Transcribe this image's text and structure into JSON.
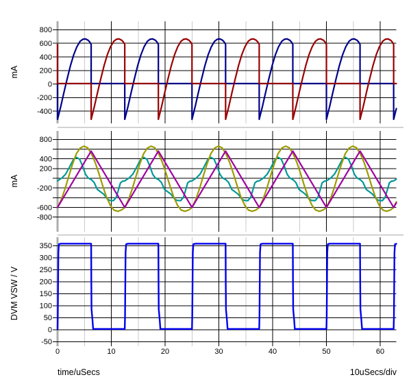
{
  "window": {
    "background": "#ffffff"
  },
  "x_axis": {
    "title": "time/uSecs",
    "scale_label": "10uSecs/div",
    "range": [
      0,
      63
    ],
    "major_ticks": [
      0,
      10,
      20,
      30,
      40,
      50,
      60
    ],
    "minor_ticks": [
      5,
      15,
      25,
      35,
      45,
      55
    ]
  },
  "grid_style": {
    "major_color": "#000000",
    "minor_color": "#c9c9c9",
    "spine_color": "#acacac",
    "separator_color": "#c4c4c4"
  },
  "chart_data": [
    {
      "type": "line",
      "title": "",
      "xlabel": "time/uSecs",
      "ylabel": "mA",
      "xlim": [
        0,
        63
      ],
      "ylim": [
        -580,
        925
      ],
      "y_grid": {
        "max": 800,
        "min": -400,
        "step": 200
      },
      "y_tick_labels": [
        800,
        600,
        400,
        200,
        0,
        -200,
        -400
      ],
      "legend": "none",
      "series": [
        {
          "name": "dark-blue-current",
          "color": "#00008B",
          "width": 2.2,
          "period": 12.5,
          "offset": 0,
          "points": [
            [
              0,
              8
            ],
            [
              0,
              -520
            ],
            [
              0.6,
              -330
            ],
            [
              1.2,
              -120
            ],
            [
              1.8,
              80
            ],
            [
              2.4,
              270
            ],
            [
              3.0,
              430
            ],
            [
              3.6,
              550
            ],
            [
              4.2,
              630
            ],
            [
              4.7,
              660
            ],
            [
              5.2,
              665
            ],
            [
              5.7,
              645
            ],
            [
              6.0,
              618
            ],
            [
              6.2,
              592
            ],
            [
              6.25,
              580
            ],
            [
              6.25,
              8
            ],
            [
              12.5,
              8
            ]
          ]
        },
        {
          "name": "dark-red-current",
          "color": "#990000",
          "width": 2.2,
          "period": 12.5,
          "offset": 6.25,
          "points": [
            [
              0,
              8
            ],
            [
              0,
              -520
            ],
            [
              0.6,
              -330
            ],
            [
              1.2,
              -120
            ],
            [
              1.8,
              80
            ],
            [
              2.4,
              270
            ],
            [
              3.0,
              430
            ],
            [
              3.6,
              550
            ],
            [
              4.2,
              630
            ],
            [
              4.7,
              660
            ],
            [
              5.2,
              665
            ],
            [
              5.7,
              645
            ],
            [
              6.0,
              618
            ],
            [
              6.2,
              592
            ],
            [
              6.25,
              580
            ],
            [
              6.25,
              8
            ],
            [
              12.5,
              8
            ]
          ]
        }
      ]
    },
    {
      "type": "line",
      "title": "",
      "xlabel": "time/uSecs",
      "ylabel": "mA",
      "xlim": [
        0,
        63
      ],
      "ylim": [
        -1100,
        973
      ],
      "y_grid": {
        "max": 800,
        "min": -800,
        "step": 200
      },
      "y_tick_labels": [
        800,
        400,
        200,
        -200,
        -600,
        -800
      ],
      "legend": "none",
      "series": [
        {
          "name": "teal-current",
          "color": "#009898",
          "width": 2.2,
          "period": 12.5,
          "offset": 0,
          "points": [
            [
              0,
              -55
            ],
            [
              0.8,
              5
            ],
            [
              1.5,
              85
            ],
            [
              2.2,
              225
            ],
            [
              2.9,
              375
            ],
            [
              3.5,
              430
            ],
            [
              4.1,
              392
            ],
            [
              4.7,
              240
            ],
            [
              5.2,
              80
            ],
            [
              5.7,
              5
            ],
            [
              6.3,
              -30
            ],
            [
              6.8,
              -85
            ],
            [
              7.4,
              -230
            ],
            [
              8.0,
              -278
            ],
            [
              8.6,
              -330
            ],
            [
              9.2,
              -420
            ],
            [
              9.7,
              -455
            ],
            [
              10.4,
              -460
            ],
            [
              10.9,
              -395
            ],
            [
              11.3,
              -250
            ],
            [
              11.7,
              -95
            ],
            [
              12.1,
              -60
            ],
            [
              12.5,
              -55
            ]
          ]
        },
        {
          "name": "olive-current",
          "color": "#9C9C00",
          "width": 2.2,
          "period": 12.5,
          "offset": 0,
          "points": [
            [
              0,
              -600
            ],
            [
              0.7,
              -440
            ],
            [
              1.4,
              -215
            ],
            [
              2.1,
              45
            ],
            [
              2.8,
              295
            ],
            [
              3.5,
              505
            ],
            [
              4.2,
              620
            ],
            [
              4.9,
              660
            ],
            [
              5.6,
              628
            ],
            [
              6.3,
              505
            ],
            [
              7.0,
              325
            ],
            [
              7.7,
              95
            ],
            [
              8.4,
              -155
            ],
            [
              9.1,
              -385
            ],
            [
              9.8,
              -555
            ],
            [
              10.5,
              -655
            ],
            [
              11.2,
              -680
            ],
            [
              11.9,
              -652
            ],
            [
              12.5,
              -600
            ]
          ]
        },
        {
          "name": "purple-current",
          "color": "#A000A0",
          "width": 2.2,
          "period": 12.5,
          "offset": 0,
          "points": [
            [
              0,
              -600
            ],
            [
              6.25,
              560
            ],
            [
              12.5,
              -600
            ]
          ]
        }
      ]
    },
    {
      "type": "line",
      "title": "",
      "xlabel": "time/uSecs",
      "ylabel": "DVM VSW / V",
      "xlim": [
        0,
        63
      ],
      "ylim": [
        -69,
        385
      ],
      "y_grid": {
        "max": 350,
        "min": -50,
        "step": 50
      },
      "y_tick_labels": [
        350,
        300,
        250,
        200,
        150,
        100,
        50,
        0,
        -50
      ],
      "legend": "none",
      "series": [
        {
          "name": "switch-node-voltage",
          "color": "#0000EE",
          "width": 2.4,
          "period": 12.5,
          "offset": 0,
          "points": [
            [
              0,
              3
            ],
            [
              0.05,
              55
            ],
            [
              0.15,
              320
            ],
            [
              0.25,
              356
            ],
            [
              0.6,
              358
            ],
            [
              6.25,
              358
            ],
            [
              6.28,
              200
            ],
            [
              6.32,
              85
            ],
            [
              6.5,
              40
            ],
            [
              6.62,
              3
            ],
            [
              12.5,
              3
            ]
          ]
        }
      ]
    }
  ]
}
